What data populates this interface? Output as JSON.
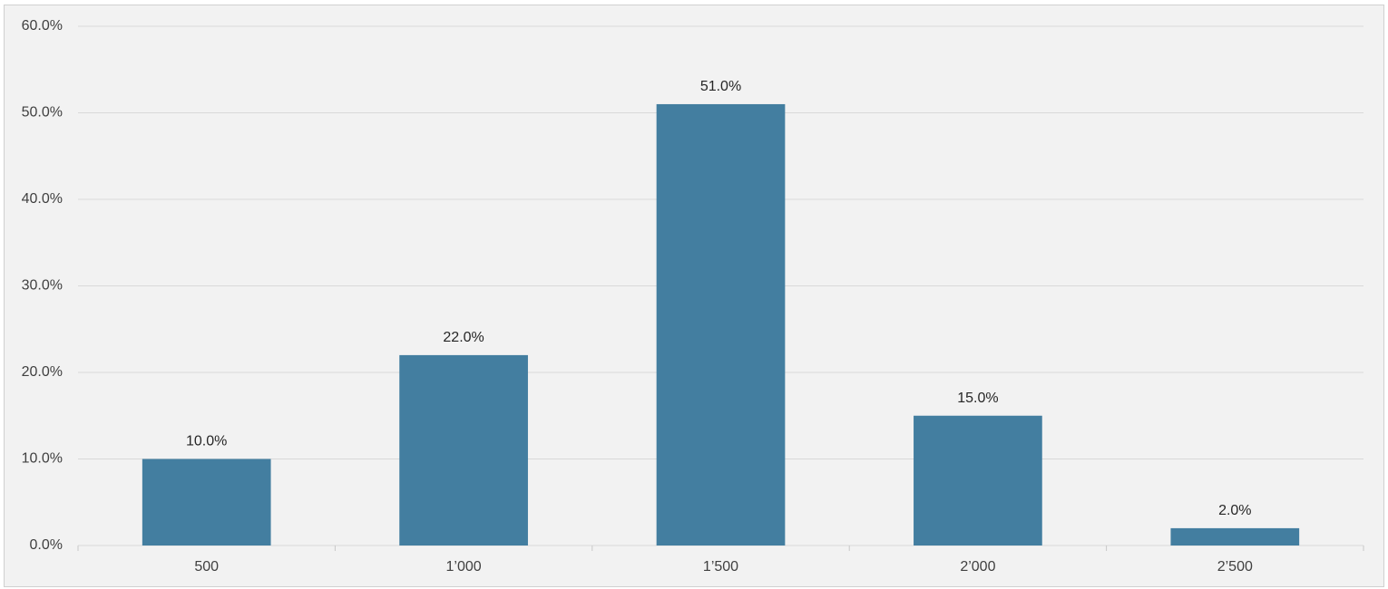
{
  "chart_data": {
    "type": "bar",
    "categories": [
      "500",
      "1’000",
      "1’500",
      "2’000",
      "2’500"
    ],
    "values": [
      10,
      22,
      51,
      15,
      2
    ],
    "value_labels": [
      "10.0%",
      "22.0%",
      "51.0%",
      "15.0%",
      "2.0%"
    ],
    "color": "#437ea0",
    "ylim": [
      0,
      60
    ],
    "yticks": [
      {
        "value": 0,
        "label": "0.0%"
      },
      {
        "value": 10,
        "label": "10.0%"
      },
      {
        "value": 20,
        "label": "20.0%"
      },
      {
        "value": 30,
        "label": "30.0%"
      },
      {
        "value": 40,
        "label": "40.0%"
      },
      {
        "value": 50,
        "label": "50.0%"
      },
      {
        "value": 60,
        "label": "60.0%"
      }
    ],
    "grid": true
  }
}
